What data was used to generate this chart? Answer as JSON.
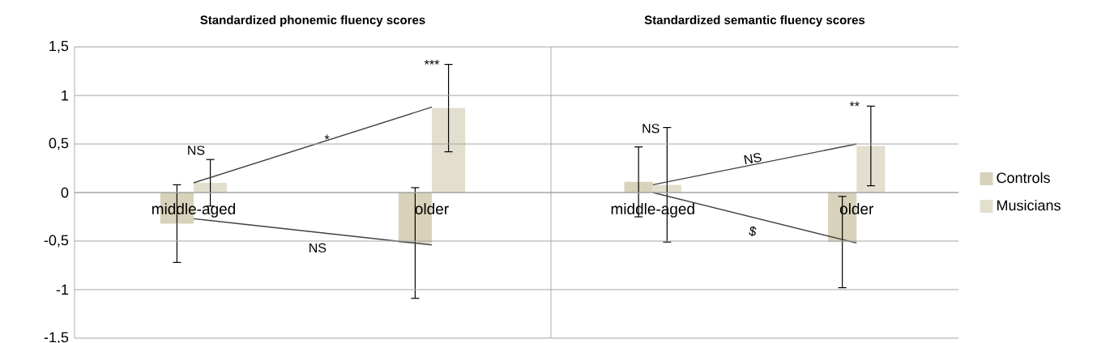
{
  "chart_data": [
    {
      "type": "bar",
      "title": "Standardized phonemic fluency scores",
      "categories": [
        "middle-aged",
        "older"
      ],
      "series": [
        {
          "color": "#d8d2ba",
          "values": [
            -0.32,
            -0.52
          ],
          "errors": [
            0.4,
            0.57
          ]
        },
        {
          "color": "#e3dfcf",
          "values": [
            0.1,
            0.87
          ],
          "errors": [
            0.24,
            0.45
          ]
        },
        {
          "type": "line",
          "color": "#404040",
          "values": [
            -0.27,
            -0.54
          ]
        },
        {
          "type": "line",
          "color": "#404040",
          "values": [
            0.1,
            0.88
          ]
        }
      ],
      "ylim": [
        -1.5,
        1.5
      ],
      "yticks": [
        {
          "value": -1.5,
          "label": "-1,5"
        },
        {
          "value": -1,
          "label": "-1"
        },
        {
          "value": -0.5,
          "label": "-0,5"
        },
        {
          "value": 0,
          "label": "0"
        },
        {
          "value": 0.5,
          "label": "0,5"
        },
        {
          "value": 1,
          "label": "1"
        },
        {
          "value": 1.5,
          "label": "1,5"
        }
      ],
      "grid": "y",
      "annotations": [
        "NS",
        "***",
        "*",
        "NS"
      ]
    },
    {
      "type": "bar",
      "title": "Standardized semantic fluency scores",
      "categories": [
        "middle-aged",
        "older"
      ],
      "series": [
        {
          "name": "Controls",
          "color": "#d8d2ba",
          "values": [
            0.11,
            -0.51
          ],
          "errors": [
            0.36,
            0.47
          ]
        },
        {
          "name": "Musicians",
          "color": "#e3dfcf",
          "values": [
            0.08,
            0.48
          ],
          "errors": [
            0.59,
            0.41
          ]
        },
        {
          "type": "line",
          "color": "#404040",
          "values": [
            0,
            -0.52
          ]
        },
        {
          "type": "line",
          "color": "#404040",
          "values": [
            0.08,
            0.5
          ]
        }
      ],
      "ylim": [
        -1.5,
        1.5
      ],
      "yticks": [
        {
          "value": -1.5,
          "label": null
        },
        {
          "value": -1,
          "label": null
        },
        {
          "value": -0.5,
          "label": null
        },
        {
          "value": 0,
          "label": null
        },
        {
          "value": 0.5,
          "label": null
        },
        {
          "value": 1,
          "label": null
        },
        {
          "value": 1.5,
          "label": null
        }
      ],
      "grid": "y",
      "tick_labels": "x",
      "legend": "right",
      "annotations": [
        "NS",
        "**",
        "NS",
        "$"
      ]
    }
  ]
}
